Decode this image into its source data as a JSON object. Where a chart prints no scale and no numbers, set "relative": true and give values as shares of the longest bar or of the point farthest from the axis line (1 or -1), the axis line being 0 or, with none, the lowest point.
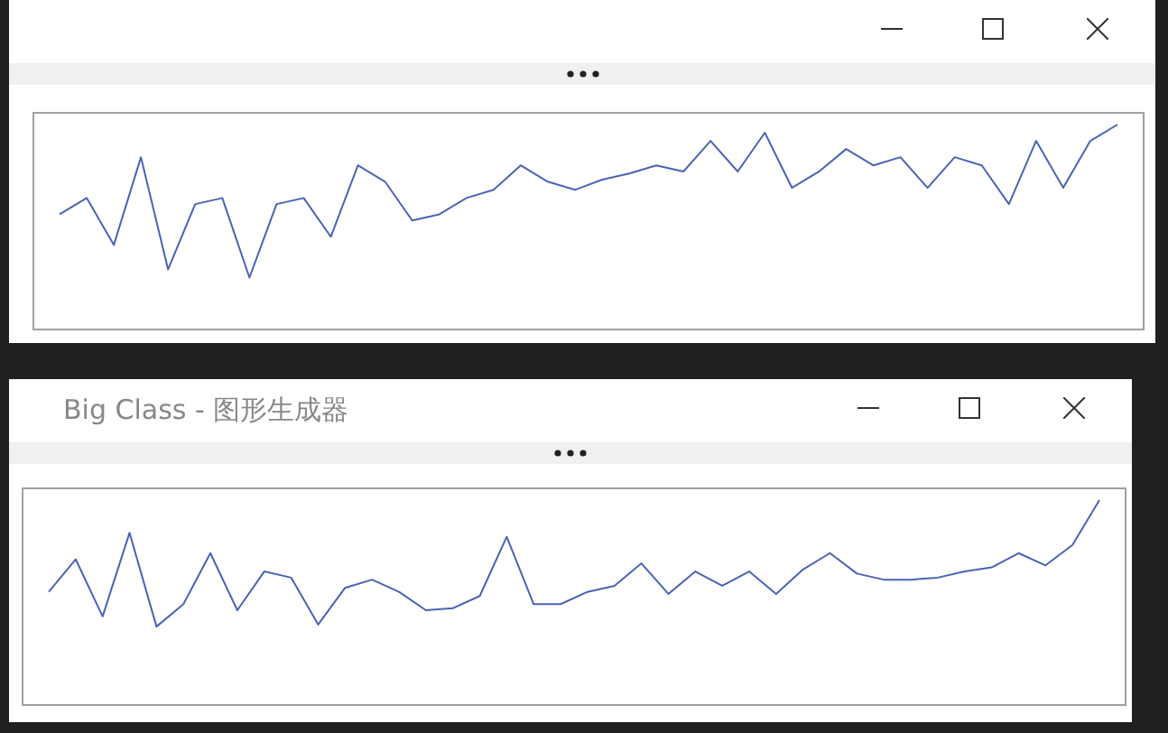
{
  "chart_data": [
    {
      "type": "line",
      "relative": true,
      "color": "#4a63b4",
      "marker": "none",
      "categories": [
        null,
        null,
        null,
        null,
        null,
        null,
        null,
        null,
        null,
        null,
        null,
        null,
        null,
        null,
        null,
        null,
        null,
        null,
        null,
        null,
        null,
        null,
        null,
        null,
        null,
        null,
        null,
        null,
        null,
        null,
        null,
        null,
        null,
        null,
        null,
        null,
        null,
        null,
        null,
        null
      ],
      "values": [
        0.56,
        0.64,
        0.41,
        0.84,
        0.29,
        0.61,
        0.64,
        0.25,
        0.61,
        0.64,
        0.45,
        0.8,
        0.72,
        0.53,
        0.56,
        0.64,
        0.68,
        0.8,
        0.72,
        0.68,
        0.73,
        0.76,
        0.8,
        0.77,
        0.92,
        0.77,
        0.96,
        0.69,
        0.77,
        0.88,
        0.8,
        0.84,
        0.69,
        0.84,
        0.8,
        0.61,
        0.92,
        0.69,
        0.92,
        1
      ]
    },
    {
      "type": "line",
      "relative": true,
      "title": "Big Class - 图形生成器",
      "color": "#4a63b4",
      "marker": "none",
      "categories": [
        null,
        null,
        null,
        null,
        null,
        null,
        null,
        null,
        null,
        null,
        null,
        null,
        null,
        null,
        null,
        null,
        null,
        null,
        null,
        null,
        null,
        null,
        null,
        null,
        null,
        null,
        null,
        null,
        null,
        null,
        null,
        null,
        null,
        null,
        null,
        null,
        null,
        null,
        null,
        null
      ],
      "values": [
        0.55,
        0.71,
        0.43,
        0.84,
        0.38,
        0.49,
        0.74,
        0.46,
        0.65,
        0.62,
        0.39,
        0.57,
        0.61,
        0.55,
        0.46,
        0.47,
        0.53,
        0.82,
        0.49,
        0.49,
        0.55,
        0.58,
        0.69,
        0.54,
        0.65,
        0.58,
        0.65,
        0.54,
        0.66,
        0.74,
        0.64,
        0.61,
        0.61,
        0.62,
        0.65,
        0.67,
        0.74,
        0.68,
        0.78,
        1
      ]
    }
  ]
}
